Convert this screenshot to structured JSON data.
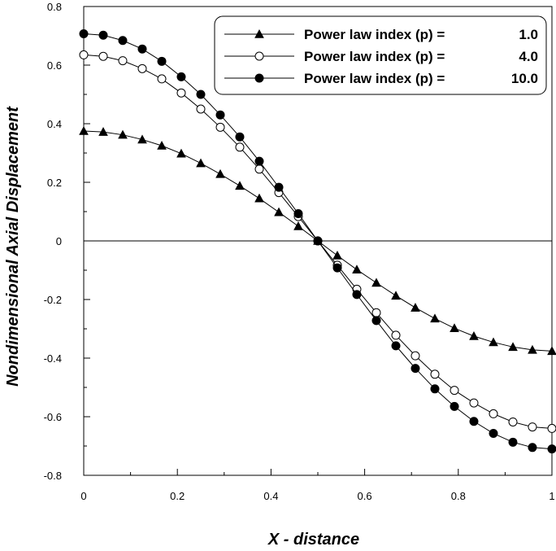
{
  "chart_data": {
    "type": "line",
    "xlabel": "X - distance",
    "ylabel": "Nondimensional  Axial  Displacement",
    "xlim": [
      0,
      1
    ],
    "ylim": [
      -0.8,
      0.8
    ],
    "x_ticks": [
      0,
      0.2,
      0.4,
      0.6,
      0.8,
      1
    ],
    "x_tick_labels": [
      "0",
      "0.2",
      "0.4",
      "0.6",
      "0.8",
      "1"
    ],
    "y_ticks": [
      -0.8,
      -0.6,
      -0.4,
      -0.2,
      0,
      0.2,
      0.4,
      0.6,
      0.8
    ],
    "y_tick_labels": [
      "-0.8",
      "-0.6",
      "-0.4",
      "-0.2",
      "0",
      "0.2",
      "0.4",
      "0.6",
      "0.8"
    ],
    "zero_line": true,
    "grid": false,
    "legend_position": "top-right",
    "x": [
      0,
      0.0417,
      0.0833,
      0.125,
      0.1667,
      0.2083,
      0.25,
      0.2917,
      0.3333,
      0.375,
      0.4167,
      0.4583,
      0.5,
      0.5417,
      0.5833,
      0.625,
      0.6667,
      0.7083,
      0.75,
      0.7917,
      0.8333,
      0.875,
      0.9167,
      0.9583,
      1
    ],
    "series": [
      {
        "name": "p1",
        "legend_label": "Power  law  index (p) =",
        "legend_value": "1.0",
        "marker": "triangle",
        "values": [
          0.375,
          0.372,
          0.362,
          0.346,
          0.325,
          0.298,
          0.265,
          0.228,
          0.188,
          0.145,
          0.098,
          0.05,
          0.0,
          -0.05,
          -0.098,
          -0.143,
          -0.187,
          -0.228,
          -0.265,
          -0.298,
          -0.325,
          -0.346,
          -0.362,
          -0.372,
          -0.376
        ]
      },
      {
        "name": "p4",
        "legend_label": "Power  law  index (p) =",
        "legend_value": "4.0",
        "marker": "open-circle",
        "values": [
          0.635,
          0.63,
          0.615,
          0.588,
          0.553,
          0.505,
          0.45,
          0.388,
          0.32,
          0.245,
          0.165,
          0.083,
          0.0,
          -0.083,
          -0.165,
          -0.245,
          -0.322,
          -0.392,
          -0.455,
          -0.51,
          -0.553,
          -0.59,
          -0.618,
          -0.635,
          -0.64
        ]
      },
      {
        "name": "p10",
        "legend_label": "Power  law  index (p) =",
        "legend_value": "10.0",
        "marker": "filled-circle",
        "values": [
          0.707,
          0.702,
          0.684,
          0.655,
          0.613,
          0.56,
          0.5,
          0.43,
          0.355,
          0.272,
          0.183,
          0.093,
          0.0,
          -0.092,
          -0.183,
          -0.272,
          -0.358,
          -0.435,
          -0.505,
          -0.565,
          -0.616,
          -0.657,
          -0.687,
          -0.705,
          -0.71
        ]
      }
    ]
  }
}
